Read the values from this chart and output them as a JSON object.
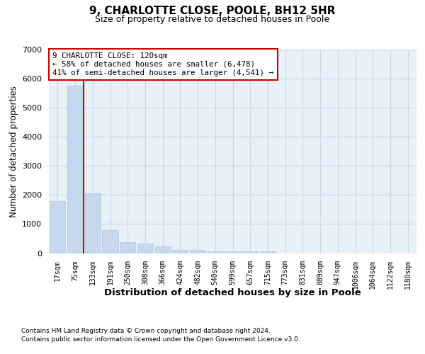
{
  "title_line1": "9, CHARLOTTE CLOSE, POOLE, BH12 5HR",
  "title_line2": "Size of property relative to detached houses in Poole",
  "xlabel": "Distribution of detached houses by size in Poole",
  "ylabel": "Number of detached properties",
  "categories": [
    "17sqm",
    "75sqm",
    "133sqm",
    "191sqm",
    "250sqm",
    "308sqm",
    "366sqm",
    "424sqm",
    "482sqm",
    "540sqm",
    "599sqm",
    "657sqm",
    "715sqm",
    "773sqm",
    "831sqm",
    "889sqm",
    "947sqm",
    "1006sqm",
    "1064sqm",
    "1122sqm",
    "1180sqm"
  ],
  "values": [
    1780,
    5750,
    2050,
    800,
    370,
    320,
    220,
    105,
    105,
    65,
    60,
    65,
    60,
    0,
    0,
    0,
    0,
    0,
    0,
    0,
    0
  ],
  "bar_color": "#c5d8ee",
  "bar_edge_color": "#b0c8e4",
  "vline_color": "#cc0000",
  "vline_pos": 1.5,
  "annotation_text": "9 CHARLOTTE CLOSE: 120sqm\n← 58% of detached houses are smaller (6,478)\n41% of semi-detached houses are larger (4,541) →",
  "annotation_box_edgecolor": "#cc0000",
  "ylim": [
    0,
    7000
  ],
  "yticks": [
    0,
    1000,
    2000,
    3000,
    4000,
    5000,
    6000,
    7000
  ],
  "grid_color": "#c8d8ec",
  "footer_line1": "Contains HM Land Registry data © Crown copyright and database right 2024.",
  "footer_line2": "Contains public sector information licensed under the Open Government Licence v3.0.",
  "bg_color": "#ffffff",
  "plot_bg_color": "#e8f0f8"
}
